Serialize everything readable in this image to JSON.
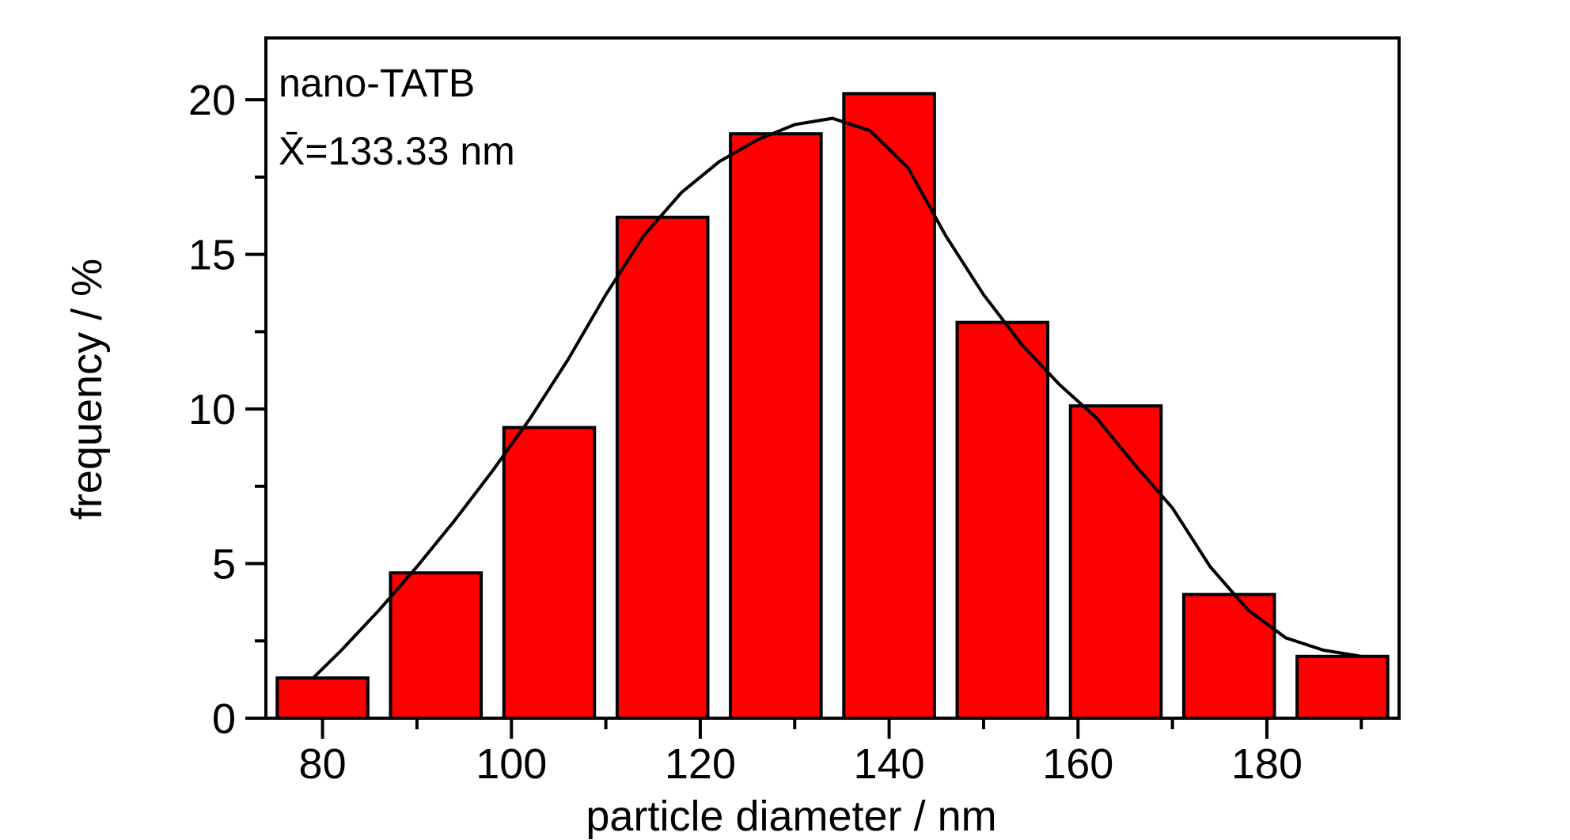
{
  "chart_data": {
    "type": "bar",
    "title": "",
    "xlabel": "particle diameter / nm",
    "ylabel": "frequency / %",
    "annotations": [
      "nano-TATB",
      "X̄=133.33 nm"
    ],
    "categories": [
      80,
      92,
      104,
      116,
      128,
      140,
      152,
      164,
      176,
      188
    ],
    "values": [
      1.3,
      4.7,
      9.4,
      16.2,
      18.9,
      20.2,
      12.8,
      10.1,
      4.0,
      2.0
    ],
    "bar_width": 9.6,
    "xlim": [
      74,
      194
    ],
    "ylim": [
      0,
      22
    ],
    "x_ticks": [
      80,
      100,
      120,
      140,
      160,
      180
    ],
    "x_ticks_text": [
      "80",
      "100",
      "120",
      "140",
      "160",
      "180"
    ],
    "y_ticks": [
      0,
      5,
      10,
      15,
      20
    ],
    "y_ticks_text": [
      "0",
      "5",
      "10",
      "15",
      "20"
    ],
    "bar_color": "#ff0000",
    "fit_curve": {
      "type": "gaussian",
      "x": [
        79,
        82,
        86,
        90,
        94,
        98,
        102,
        106,
        110,
        114,
        118,
        122,
        126,
        130,
        134,
        138,
        142,
        146,
        150,
        154,
        158,
        162,
        166,
        170,
        174,
        178,
        182,
        186,
        190
      ],
      "y": [
        1.3,
        2.2,
        3.5,
        4.9,
        6.4,
        8.0,
        9.7,
        11.6,
        13.7,
        15.6,
        17.0,
        18.0,
        18.7,
        19.2,
        19.4,
        19.0,
        17.8,
        15.6,
        13.7,
        12.1,
        10.8,
        9.7,
        8.2,
        6.8,
        4.9,
        3.5,
        2.6,
        2.2,
        2.0
      ]
    },
    "grid": false,
    "legend": "none"
  }
}
